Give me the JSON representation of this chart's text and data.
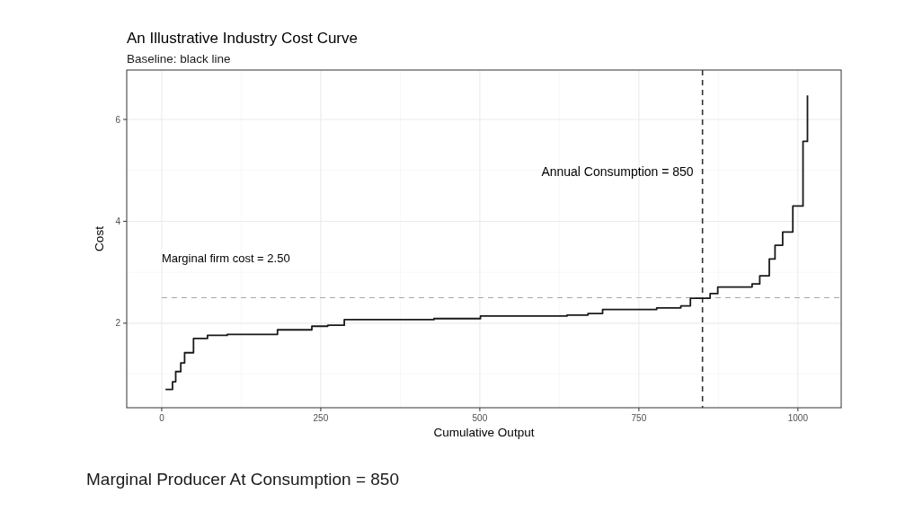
{
  "chart_data": {
    "type": "step",
    "title": "An Illustrative Industry Cost Curve",
    "subtitle": "Baseline: black line",
    "xlabel": "Cumulative Output",
    "ylabel": "Cost",
    "x": [
      6,
      17,
      22,
      30,
      36,
      50,
      72,
      103,
      182,
      236,
      261,
      287,
      428,
      501,
      637,
      670,
      693,
      778,
      816,
      831,
      862,
      874,
      928,
      940,
      955,
      964,
      976,
      992,
      1008,
      1015
    ],
    "series": [
      {
        "color": "#1a1a1a",
        "values": [
          0.7,
          0.85,
          1.05,
          1.22,
          1.42,
          1.7,
          1.76,
          1.78,
          1.87,
          1.94,
          1.96,
          2.07,
          2.09,
          2.14,
          2.16,
          2.19,
          2.27,
          2.3,
          2.34,
          2.49,
          2.58,
          2.71,
          2.77,
          2.93,
          3.26,
          3.53,
          3.79,
          4.3,
          5.57,
          6.47
        ]
      }
    ],
    "xlim": [
      -55,
      1068
    ],
    "ylim": [
      0.34,
      6.97
    ],
    "xticks": [
      0,
      250,
      500,
      750,
      1000
    ],
    "yticks": [
      2,
      4,
      6
    ],
    "grid": true,
    "ref_lines": [
      {
        "axis": "y",
        "value": 2.5,
        "label": "Marginal firm cost = 2.50",
        "color": "#a6a6a6",
        "line_style": "dashed"
      },
      {
        "axis": "x",
        "value": 850,
        "label": "Annual Consumption = 850",
        "color": "#333333",
        "line_style": "dashed"
      }
    ],
    "annotations": [
      "Marginal Producer At Consumption = 850"
    ]
  }
}
